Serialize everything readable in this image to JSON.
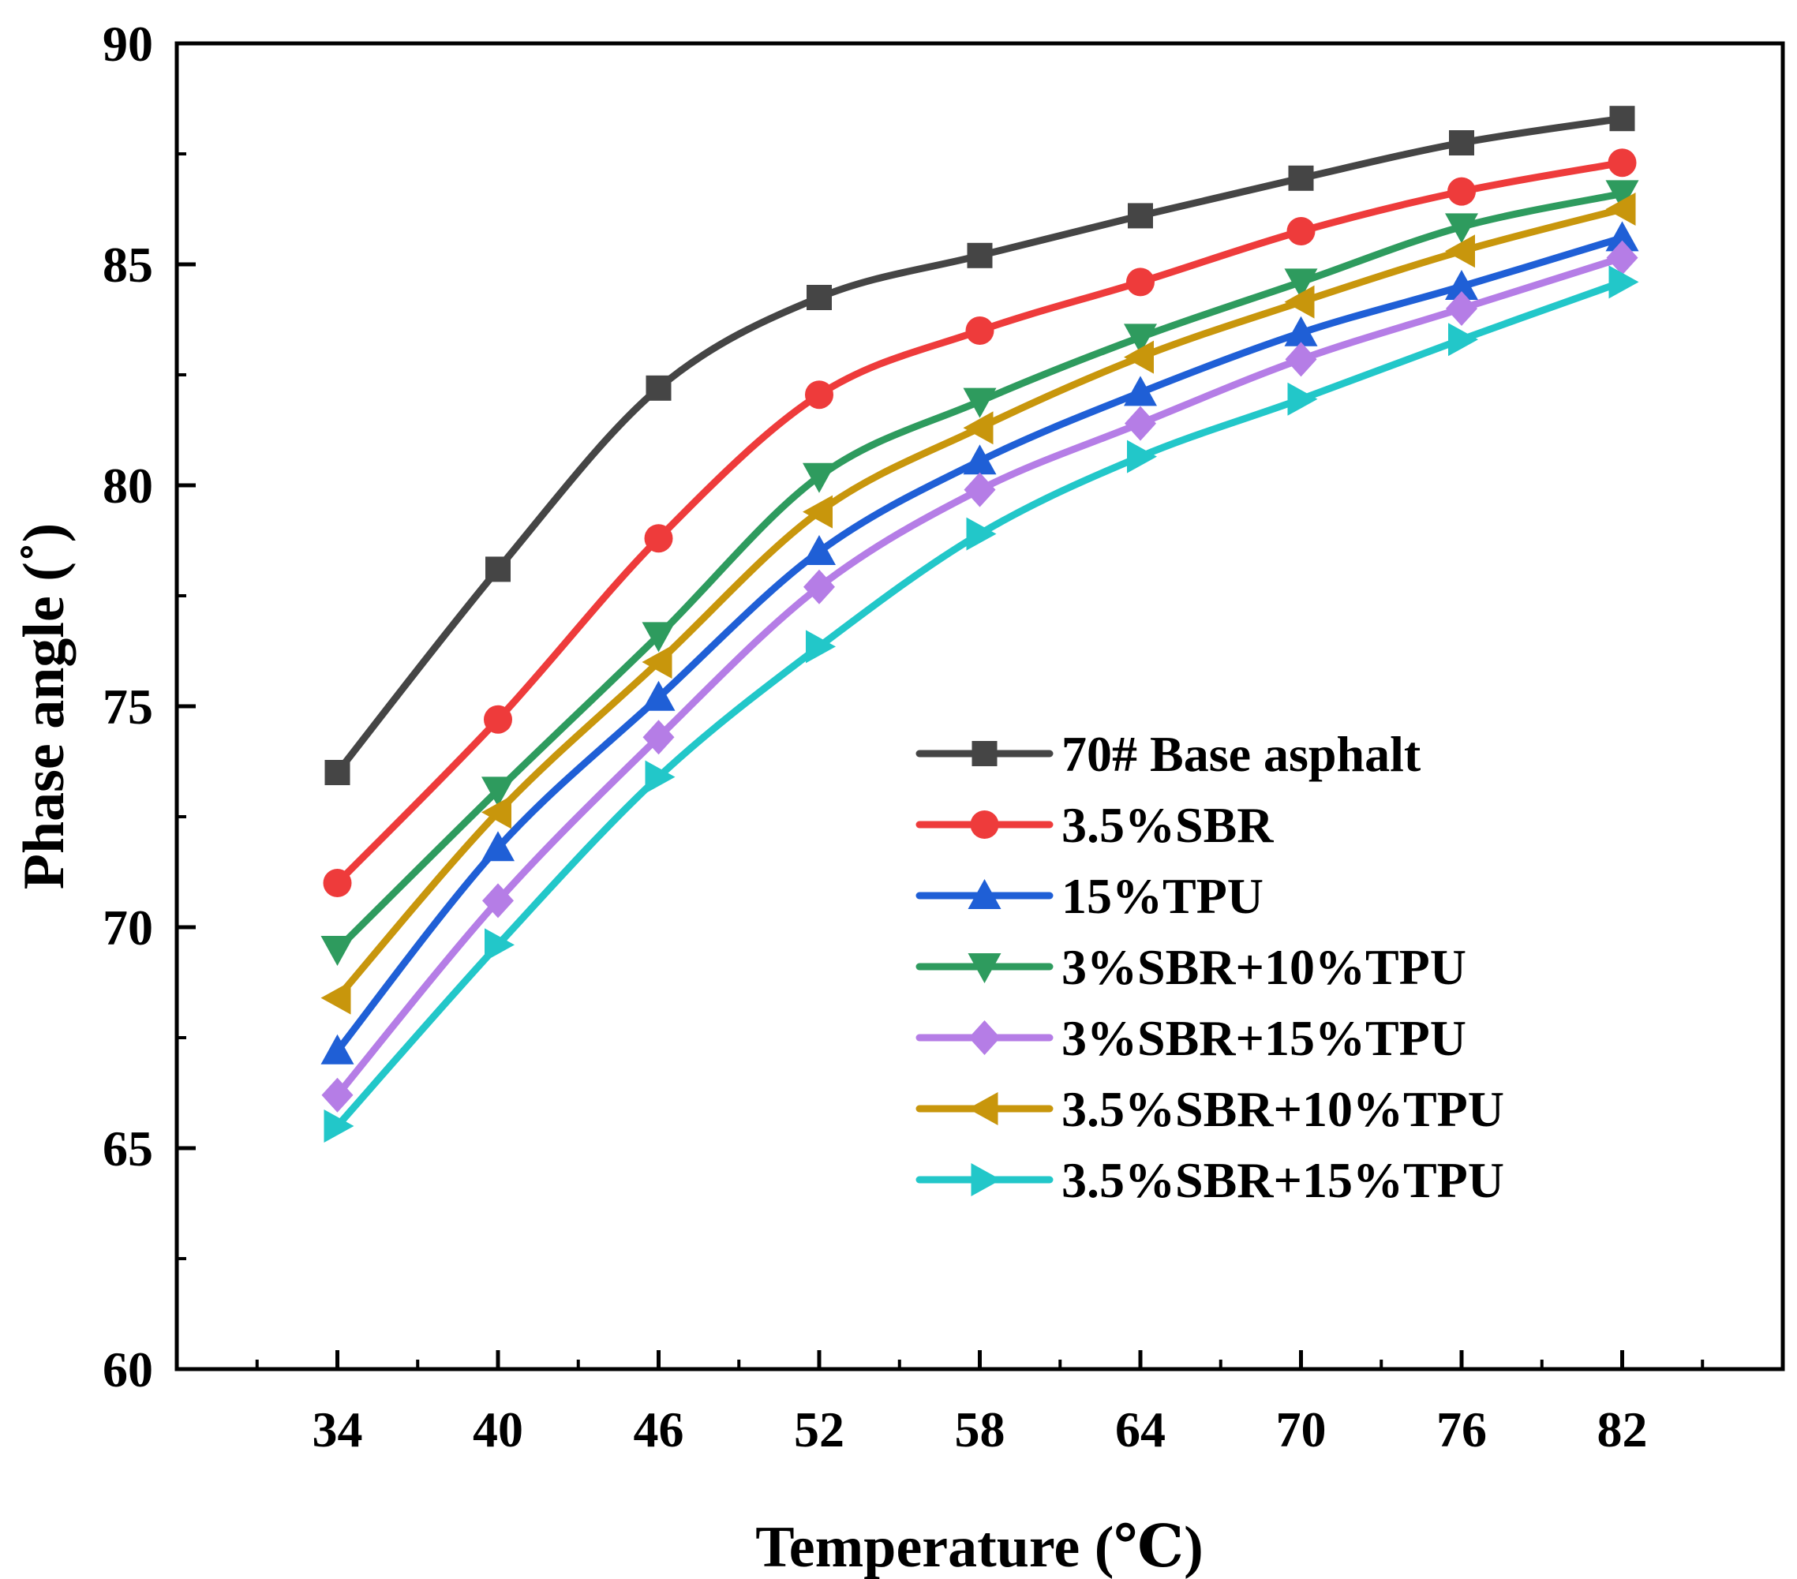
{
  "chart_data": {
    "type": "line",
    "xlabel": "Temperature (℃)",
    "ylabel": "Phase angle (˚)",
    "x": [
      34,
      40,
      46,
      52,
      58,
      64,
      70,
      76,
      82
    ],
    "xticks": [
      "34",
      "40",
      "46",
      "52",
      "58",
      "64",
      "70",
      "76",
      "82"
    ],
    "xlim": [
      28,
      88
    ],
    "ylim": [
      60,
      90
    ],
    "yticks": [
      "60",
      "65",
      "70",
      "75",
      "80",
      "85",
      "90"
    ],
    "legend_position": "center-right",
    "grid": false,
    "series": [
      {
        "name": "70# Base asphalt",
        "marker": "square",
        "color": "#454545",
        "values": [
          73.5,
          78.1,
          82.2,
          84.25,
          85.2,
          86.1,
          86.95,
          87.75,
          88.3
        ]
      },
      {
        "name": "3.5%SBR",
        "marker": "circle",
        "color": "#ee3b3b",
        "values": [
          71.0,
          74.7,
          78.8,
          82.05,
          83.5,
          84.6,
          85.75,
          86.65,
          87.3
        ]
      },
      {
        "name": "15%TPU",
        "marker": "triangle-up",
        "color": "#1f5fd6",
        "values": [
          67.2,
          71.8,
          75.2,
          78.5,
          80.55,
          82.1,
          83.45,
          84.5,
          85.6
        ]
      },
      {
        "name": "3%SBR+10%TPU",
        "marker": "triangle-down",
        "color": "#2e9b5e",
        "values": [
          69.5,
          73.1,
          76.6,
          80.2,
          81.9,
          83.35,
          84.6,
          85.85,
          86.6
        ]
      },
      {
        "name": "3%SBR+15%TPU",
        "marker": "diamond",
        "color": "#b57de6",
        "values": [
          66.2,
          70.6,
          74.3,
          77.7,
          79.9,
          81.4,
          82.85,
          84.0,
          85.15
        ]
      },
      {
        "name": "3.5%SBR+10%TPU",
        "marker": "triangle-left",
        "color": "#c8960c",
        "values": [
          68.4,
          72.6,
          76.0,
          79.4,
          81.3,
          82.9,
          84.15,
          85.3,
          86.25
        ]
      },
      {
        "name": "3.5%SBR+15%TPU",
        "marker": "triangle-right",
        "color": "#22c7c9",
        "values": [
          65.5,
          69.6,
          73.4,
          76.35,
          78.9,
          80.65,
          81.95,
          83.3,
          84.6
        ]
      }
    ]
  }
}
